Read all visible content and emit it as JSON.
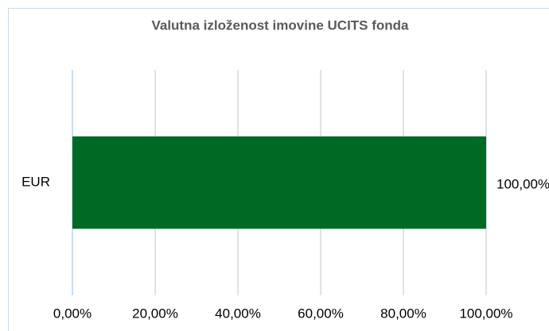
{
  "chart_data": {
    "type": "hbar",
    "title": "Valutna izloženost imovine UCITS fonda",
    "categories": [
      "EUR"
    ],
    "values": [
      100
    ],
    "value_labels": [
      "100,00%"
    ],
    "color": "#006a25",
    "xlim": [
      0,
      100
    ],
    "xticks": [
      {
        "value": 0,
        "label": "0,00%"
      },
      {
        "value": 20,
        "label": "20,00%"
      },
      {
        "value": 40,
        "label": "40,00%"
      },
      {
        "value": 60,
        "label": "60,00%"
      },
      {
        "value": 80,
        "label": "80,00%"
      },
      {
        "value": 100,
        "label": "100,00%"
      }
    ],
    "grid": true
  }
}
